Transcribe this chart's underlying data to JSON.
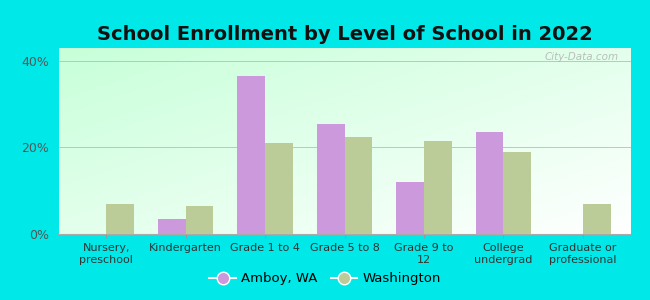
{
  "title": "School Enrollment by Level of School in 2022",
  "categories": [
    "Nursery,\npreschool",
    "Kindergarten",
    "Grade 1 to 4",
    "Grade 5 to 8",
    "Grade 9 to\n12",
    "College\nundergrad",
    "Graduate or\nprofessional"
  ],
  "amboy_values": [
    0,
    3.5,
    36.5,
    25.5,
    12.0,
    23.5,
    0
  ],
  "washington_values": [
    7.0,
    6.5,
    21.0,
    22.5,
    21.5,
    19.0,
    7.0
  ],
  "amboy_color": "#cc99dd",
  "washington_color": "#bbcc99",
  "ylim": [
    0,
    43
  ],
  "yticks": [
    0,
    20,
    40
  ],
  "ytick_labels": [
    "0%",
    "20%",
    "40%"
  ],
  "background_color": "#00e8e8",
  "bar_width": 0.35,
  "title_fontsize": 14,
  "legend_labels": [
    "Amboy, WA",
    "Washington"
  ],
  "watermark": "City-Data.com"
}
